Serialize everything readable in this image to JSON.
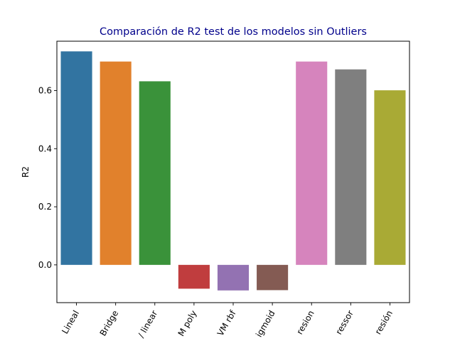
{
  "chart_data": {
    "type": "bar",
    "title": "Comparación de R2 test de los modelos sin Outliers",
    "xlabel": "",
    "ylabel": "R2",
    "ylim": [
      -0.13,
      0.77
    ],
    "yticks": [
      "0.0",
      "0.2",
      "0.4",
      "0.6"
    ],
    "categories": [
      "Lineal",
      "Bridge",
      "SVM linear",
      "SVM poly",
      "SVM rbf",
      "SVM sigmoid",
      "Regresion",
      "Regressor",
      "Regresión"
    ],
    "category_labels_shown": [
      "Lineal",
      "Bridge",
      "/ linear",
      "M poly",
      "VM rbf",
      "igmoid",
      "resion",
      "ressor",
      "resión"
    ],
    "values": [
      0.735,
      0.7,
      0.632,
      -0.082,
      -0.088,
      -0.087,
      0.7,
      0.673,
      0.601
    ],
    "colors": [
      "#3274a1",
      "#e1812c",
      "#3a923a",
      "#c03d3e",
      "#9372b2",
      "#845b53",
      "#d684bd",
      "#7f7f7f",
      "#a9aa35"
    ],
    "x_tick_rotation": 60,
    "grid": false,
    "legend": "none"
  }
}
